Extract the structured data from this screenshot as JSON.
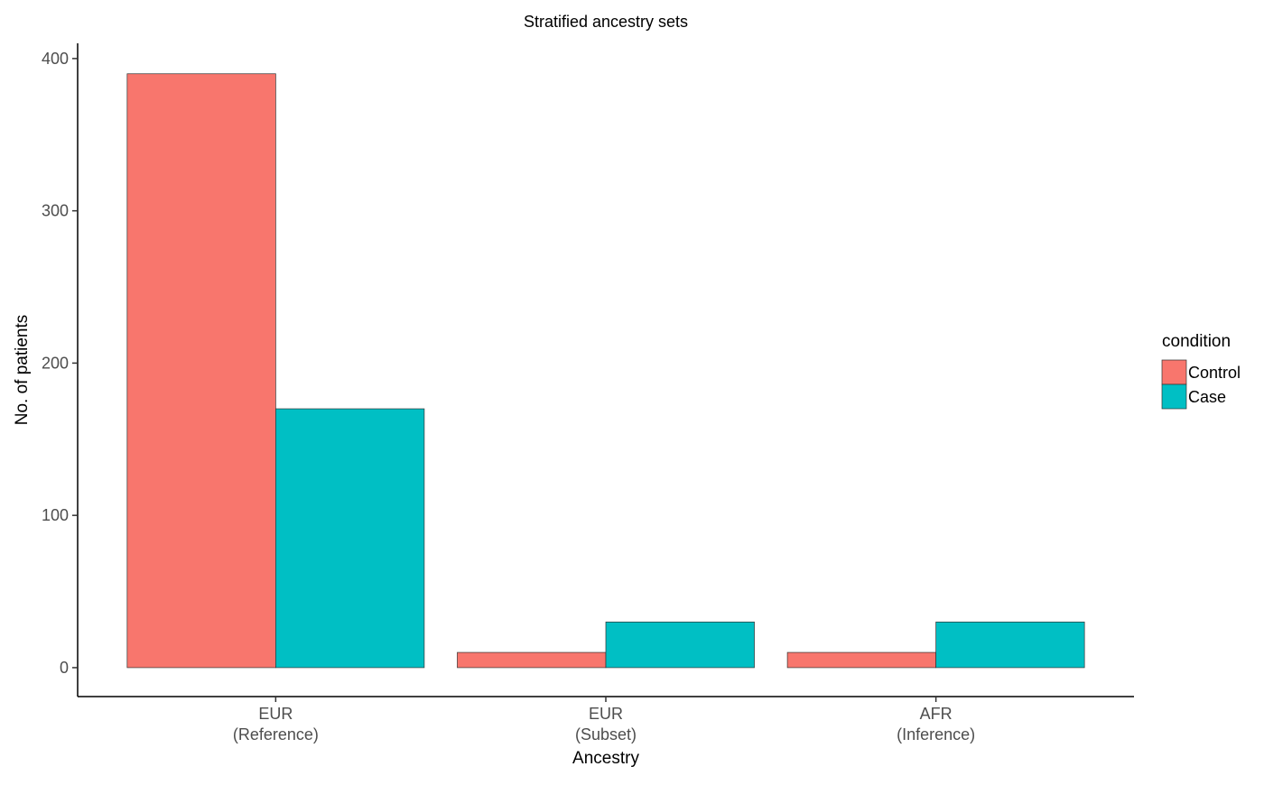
{
  "chart_data": {
    "type": "bar",
    "title": "Stratified ancestry sets",
    "xlabel": "Ancestry",
    "ylabel": "No. of patients",
    "categories": [
      [
        "EUR",
        "(Reference)"
      ],
      [
        "EUR",
        "(Subset)"
      ],
      [
        "AFR",
        "(Inference)"
      ]
    ],
    "series": [
      {
        "name": "Control",
        "color": "#F8766D",
        "values": [
          390,
          10,
          10
        ]
      },
      {
        "name": "Case",
        "color": "#00BFC4",
        "values": [
          170,
          30,
          30
        ]
      }
    ],
    "yticks": [
      0,
      100,
      200,
      300,
      400
    ],
    "ylim": [
      -19,
      410
    ],
    "grid": false,
    "legend": {
      "title": "condition",
      "placement": "right"
    }
  }
}
